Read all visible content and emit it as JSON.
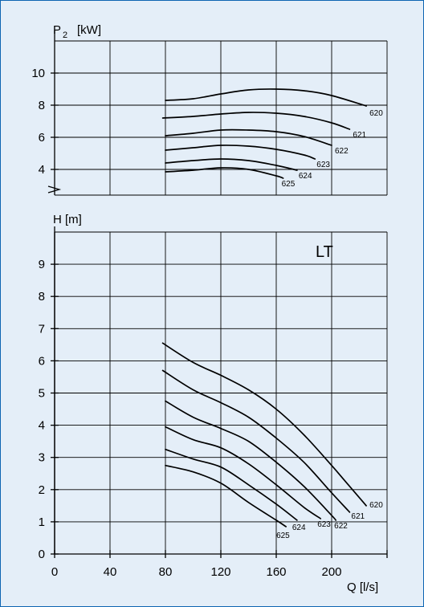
{
  "chart_data": [
    {
      "type": "line",
      "ylabel_main": "P",
      "ylabel_sub": "2",
      "ylabel_unit": "[kW]",
      "xlim": [
        0,
        240
      ],
      "ylim": [
        2.4,
        12
      ],
      "yticks": [
        4,
        6,
        8,
        10
      ],
      "grid": true,
      "series": [
        {
          "name": "620",
          "x": [
            80,
            100,
            120,
            140,
            160,
            180,
            200,
            225
          ],
          "y": [
            8.3,
            8.4,
            8.7,
            8.95,
            9.0,
            8.9,
            8.6,
            7.95
          ]
        },
        {
          "name": "621",
          "x": [
            78,
            100,
            120,
            140,
            160,
            180,
            200,
            213
          ],
          "y": [
            7.2,
            7.3,
            7.45,
            7.55,
            7.5,
            7.3,
            6.9,
            6.5
          ]
        },
        {
          "name": "622",
          "x": [
            80,
            100,
            120,
            140,
            160,
            180,
            200
          ],
          "y": [
            6.1,
            6.25,
            6.45,
            6.45,
            6.35,
            6.05,
            5.5
          ]
        },
        {
          "name": "623",
          "x": [
            80,
            100,
            120,
            140,
            160,
            180,
            188
          ],
          "y": [
            5.2,
            5.35,
            5.5,
            5.45,
            5.25,
            4.9,
            4.65
          ]
        },
        {
          "name": "624",
          "x": [
            80,
            100,
            120,
            140,
            160,
            175
          ],
          "y": [
            4.4,
            4.55,
            4.65,
            4.55,
            4.25,
            3.95
          ]
        },
        {
          "name": "625",
          "x": [
            80,
            100,
            120,
            140,
            160,
            165
          ],
          "y": [
            3.85,
            3.95,
            4.1,
            4.0,
            3.6,
            3.45
          ]
        }
      ]
    },
    {
      "type": "line",
      "ylabel": "H [m]",
      "xlabel": "Q [l/s]",
      "xlim": [
        0,
        240
      ],
      "ylim": [
        0,
        10
      ],
      "xticks": [
        0,
        40,
        80,
        120,
        160,
        200
      ],
      "yticks": [
        0,
        1,
        2,
        3,
        4,
        5,
        6,
        7,
        8,
        9
      ],
      "grid": true,
      "tag": "LT",
      "series": [
        {
          "name": "620",
          "x": [
            78,
            100,
            120,
            140,
            160,
            180,
            200,
            210,
            220,
            225
          ],
          "y": [
            6.55,
            5.95,
            5.55,
            5.1,
            4.5,
            3.7,
            2.75,
            2.25,
            1.75,
            1.5
          ]
        },
        {
          "name": "621",
          "x": [
            78,
            100,
            120,
            140,
            160,
            180,
            200,
            213
          ],
          "y": [
            5.7,
            5.1,
            4.7,
            4.25,
            3.6,
            2.85,
            1.9,
            1.3
          ]
        },
        {
          "name": "622",
          "x": [
            80,
            100,
            120,
            140,
            160,
            180,
            200,
            203
          ],
          "y": [
            4.75,
            4.25,
            3.9,
            3.5,
            2.85,
            2.1,
            1.2,
            1.05
          ]
        },
        {
          "name": "623",
          "x": [
            80,
            100,
            120,
            140,
            160,
            180,
            192
          ],
          "y": [
            3.95,
            3.55,
            3.3,
            2.8,
            2.15,
            1.45,
            1.1
          ]
        },
        {
          "name": "624",
          "x": [
            80,
            100,
            120,
            140,
            160,
            175
          ],
          "y": [
            3.25,
            2.95,
            2.7,
            2.15,
            1.55,
            1.05
          ]
        },
        {
          "name": "625",
          "x": [
            80,
            100,
            120,
            140,
            160,
            167
          ],
          "y": [
            2.75,
            2.55,
            2.2,
            1.6,
            1.05,
            0.85
          ]
        }
      ]
    }
  ]
}
